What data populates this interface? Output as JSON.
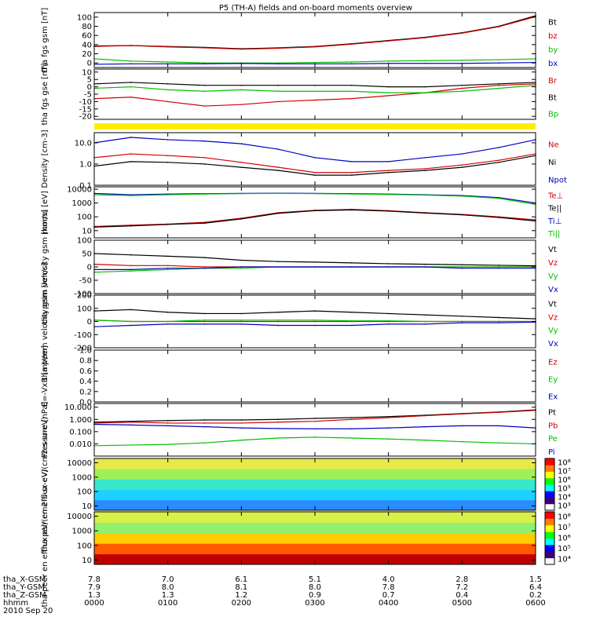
{
  "title": "P5 (TH-A) fields and on-board moments overview",
  "chart_data": [
    {
      "type": "line",
      "ylabel": "tha fgs gsm [nT]",
      "ylim": [
        -10,
        110
      ],
      "yscale": "linear",
      "yticks": [
        0,
        20,
        40,
        60,
        80,
        100
      ],
      "ytick_labels": [
        "0",
        "20",
        "40",
        "60",
        "80",
        "100"
      ],
      "x": [
        0,
        30,
        60,
        90,
        120,
        150,
        180,
        210,
        240,
        270,
        300,
        330,
        360
      ],
      "series": [
        {
          "name": "Bt",
          "color": "#000000",
          "values": [
            37,
            38,
            36,
            34,
            31,
            33,
            36,
            42,
            49,
            56,
            66,
            80,
            103
          ]
        },
        {
          "name": "bz",
          "color": "#d00000",
          "values": [
            36,
            38,
            35,
            33,
            30,
            32,
            35,
            41,
            48,
            55,
            65,
            79,
            101
          ]
        },
        {
          "name": "by",
          "color": "#00c000",
          "values": [
            9,
            4,
            2,
            0,
            0,
            0,
            1,
            2,
            4,
            5,
            6,
            7,
            9
          ]
        },
        {
          "name": "bx",
          "color": "#0000c0",
          "values": [
            -3,
            -2,
            -2,
            -2,
            -1,
            -2,
            -2,
            -2,
            -1,
            -1,
            -1,
            0,
            1
          ]
        }
      ]
    },
    {
      "type": "line",
      "ylabel": "tha fgs gse [nT]",
      "ylim": [
        -22,
        12
      ],
      "yscale": "linear",
      "yticks": [
        -20,
        -15,
        -10,
        -5,
        0,
        5,
        10
      ],
      "ytick_labels": [
        "-20",
        "-15",
        "-10",
        "-5",
        "0",
        "5",
        "10"
      ],
      "x": [
        0,
        30,
        60,
        90,
        120,
        150,
        180,
        210,
        240,
        270,
        300,
        330,
        360
      ],
      "series": [
        {
          "name": "Br",
          "color": "#d00000",
          "values": [
            -8,
            -7,
            -10,
            -13,
            -12,
            -10,
            -9,
            -8,
            -6,
            -4,
            -1,
            1,
            2
          ]
        },
        {
          "name": "Bt",
          "color": "#000000",
          "values": [
            2,
            3,
            2,
            1,
            1,
            1,
            1,
            1,
            0,
            0,
            1,
            2,
            3
          ]
        },
        {
          "name": "Bp",
          "color": "#00c000",
          "values": [
            -1,
            0,
            -2,
            -3,
            -2,
            -3,
            -3,
            -3,
            -4,
            -4,
            -3,
            -1,
            1
          ]
        }
      ]
    },
    {
      "type": "line",
      "ylabel": "Density [cm-3]",
      "ylim": [
        0.1,
        30
      ],
      "yscale": "log",
      "yticks": [
        0.1,
        1,
        10
      ],
      "ytick_labels": [
        "0.1",
        "1.0",
        "10.0"
      ],
      "x": [
        0,
        30,
        60,
        90,
        120,
        150,
        180,
        210,
        240,
        270,
        300,
        330,
        360
      ],
      "series": [
        {
          "name": "Ne",
          "color": "#d00000",
          "values": [
            2,
            3,
            2.5,
            2,
            1.2,
            0.7,
            0.4,
            0.4,
            0.5,
            0.6,
            0.9,
            1.5,
            3
          ]
        },
        {
          "name": "Ni",
          "color": "#000000",
          "values": [
            0.8,
            1.3,
            1.2,
            1,
            0.7,
            0.5,
            0.3,
            0.3,
            0.4,
            0.5,
            0.7,
            1.2,
            2.5
          ]
        },
        {
          "name": "Npot",
          "color": "#0000c0",
          "values": [
            10,
            18,
            14,
            12,
            9,
            5,
            2,
            1.3,
            1.3,
            2,
            3,
            6,
            14
          ]
        }
      ]
    },
    {
      "type": "line",
      "ylabel": "moms [eV]",
      "ylim": [
        3,
        15000
      ],
      "yscale": "log",
      "yticks": [
        10,
        100,
        1000,
        10000
      ],
      "ytick_labels": [
        "10",
        "100",
        "1000",
        "10000"
      ],
      "x": [
        0,
        30,
        60,
        90,
        120,
        150,
        180,
        210,
        240,
        270,
        300,
        330,
        360
      ],
      "series": [
        {
          "name": "Te⊥",
          "color": "#d00000",
          "values": [
            20,
            25,
            30,
            40,
            80,
            200,
            300,
            350,
            280,
            200,
            150,
            100,
            60
          ]
        },
        {
          "name": "Te||",
          "color": "#000000",
          "values": [
            18,
            22,
            28,
            35,
            70,
            180,
            280,
            320,
            260,
            190,
            140,
            90,
            50
          ]
        },
        {
          "name": "Ti⊥",
          "color": "#0000c0",
          "values": [
            5000,
            4000,
            4500,
            4800,
            5000,
            5200,
            5000,
            4800,
            4500,
            4000,
            3500,
            2500,
            1000
          ]
        },
        {
          "name": "Ti||",
          "color": "#00c000",
          "values": [
            4000,
            3500,
            4000,
            4500,
            4800,
            5000,
            4800,
            4500,
            4200,
            3800,
            3200,
            2200,
            800
          ]
        }
      ]
    },
    {
      "type": "line",
      "ylabel": "tha peim velocity gsm [km/s]",
      "ylim": [
        -100,
        100
      ],
      "yscale": "linear",
      "yticks": [
        -100,
        -50,
        0,
        50,
        100
      ],
      "ytick_labels": [
        "-100",
        "-50",
        "0",
        "50",
        "100"
      ],
      "x": [
        0,
        30,
        60,
        90,
        120,
        150,
        180,
        210,
        240,
        270,
        300,
        330,
        360
      ],
      "series": [
        {
          "name": "Vt",
          "color": "#000000",
          "values": [
            50,
            45,
            40,
            35,
            25,
            20,
            18,
            15,
            12,
            10,
            8,
            6,
            4
          ]
        },
        {
          "name": "Vz",
          "color": "#d00000",
          "values": [
            10,
            5,
            5,
            0,
            0,
            0,
            0,
            0,
            0,
            0,
            0,
            0,
            0
          ]
        },
        {
          "name": "Vy",
          "color": "#00c000",
          "values": [
            -20,
            -15,
            -10,
            -5,
            -5,
            0,
            0,
            0,
            0,
            0,
            0,
            0,
            0
          ]
        },
        {
          "name": "Vx",
          "color": "#0000c0",
          "values": [
            -10,
            -10,
            -5,
            -5,
            0,
            0,
            0,
            0,
            0,
            0,
            -5,
            -5,
            -5
          ]
        }
      ]
    },
    {
      "type": "line",
      "ylabel": "tha peem velocity gsm [km/s]",
      "ylim": [
        -200,
        200
      ],
      "yscale": "linear",
      "yticks": [
        -200,
        -100,
        0,
        100,
        200
      ],
      "ytick_labels": [
        "-200",
        "-100",
        "0",
        "100",
        "200"
      ],
      "x": [
        0,
        30,
        60,
        90,
        120,
        150,
        180,
        210,
        240,
        270,
        300,
        330,
        360
      ],
      "series": [
        {
          "name": "Vt",
          "color": "#000000",
          "values": [
            80,
            90,
            70,
            60,
            60,
            70,
            80,
            70,
            60,
            50,
            40,
            30,
            20
          ]
        },
        {
          "name": "Vz",
          "color": "#d00000",
          "values": [
            10,
            0,
            0,
            0,
            0,
            0,
            0,
            0,
            0,
            0,
            0,
            0,
            0
          ]
        },
        {
          "name": "Vy",
          "color": "#00c000",
          "values": [
            10,
            0,
            0,
            10,
            10,
            10,
            10,
            5,
            5,
            0,
            0,
            0,
            0
          ]
        },
        {
          "name": "Vx",
          "color": "#0000c0",
          "values": [
            -40,
            -30,
            -20,
            -20,
            -20,
            -30,
            -30,
            -30,
            -20,
            -20,
            -10,
            -10,
            -5
          ]
        }
      ]
    },
    {
      "type": "line",
      "ylabel": "E=-VxB [mV/m]",
      "ylim": [
        0,
        1
      ],
      "yscale": "linear",
      "yticks": [
        0,
        0.2,
        0.4,
        0.6,
        0.8,
        1
      ],
      "ytick_labels": [
        "0.0",
        "0.2",
        "0.4",
        "0.6",
        "0.8",
        "1.0"
      ],
      "x": [],
      "series": [
        {
          "name": "Ez",
          "color": "#d00000",
          "values": []
        },
        {
          "name": "Ey",
          "color": "#00c000",
          "values": []
        },
        {
          "name": "Ex",
          "color": "#0000c0",
          "values": []
        }
      ]
    },
    {
      "type": "line",
      "ylabel": "Pressure [nPa]",
      "ylim": [
        0.001,
        20
      ],
      "yscale": "log",
      "yticks": [
        0.01,
        0.1,
        1,
        10
      ],
      "ytick_labels": [
        "0.010",
        "0.100",
        "1.000",
        "10.000"
      ],
      "x": [
        0,
        30,
        60,
        90,
        120,
        150,
        180,
        210,
        240,
        270,
        300,
        330,
        360
      ],
      "series": [
        {
          "name": "Pt",
          "color": "#000000",
          "values": [
            0.6,
            0.7,
            0.8,
            0.9,
            0.9,
            1.0,
            1.2,
            1.4,
            1.7,
            2.2,
            3,
            4,
            6
          ]
        },
        {
          "name": "Pb",
          "color": "#d00000",
          "values": [
            0.5,
            0.6,
            0.5,
            0.5,
            0.5,
            0.6,
            0.7,
            1.0,
            1.4,
            2,
            2.8,
            3.8,
            5.5
          ]
        },
        {
          "name": "Pe",
          "color": "#00c000",
          "values": [
            0.007,
            0.008,
            0.009,
            0.012,
            0.02,
            0.03,
            0.035,
            0.03,
            0.025,
            0.02,
            0.015,
            0.012,
            0.01
          ]
        },
        {
          "name": "Pi",
          "color": "#0000c0",
          "values": [
            0.4,
            0.35,
            0.3,
            0.25,
            0.2,
            0.18,
            0.17,
            0.17,
            0.2,
            0.25,
            0.3,
            0.3,
            0.2
          ]
        }
      ]
    },
    {
      "type": "heatmap",
      "ylabel": "tha peir en efflux eV/(cm2-s-sr-eV)",
      "ylim": [
        5,
        20000
      ],
      "yscale": "log",
      "yticks": [
        10,
        100,
        1000,
        10000
      ],
      "ytick_labels": [
        "10",
        "100",
        "1000",
        "10000"
      ],
      "color_ticks": [
        "10³",
        "10⁴",
        "10⁵",
        "10⁶",
        "10⁷",
        "10⁸"
      ]
    },
    {
      "type": "heatmap",
      "ylabel": "tha peer en efflux eV/(cm2-s-sr-eV)",
      "ylim": [
        5,
        20000
      ],
      "yscale": "log",
      "yticks": [
        10,
        100,
        1000,
        10000
      ],
      "ytick_labels": [
        "10",
        "100",
        "1000",
        "10000"
      ],
      "color_ticks": [
        "10⁴",
        "10⁵",
        "10⁶",
        "10⁷",
        "10⁸"
      ]
    }
  ],
  "x_axis": {
    "rows": [
      {
        "label": "tha_X-GSM",
        "values": [
          "7.8",
          "7.0",
          "6.1",
          "5.1",
          "4.0",
          "2.8",
          "1.5"
        ]
      },
      {
        "label": "tha_Y-GSM",
        "values": [
          "7.9",
          "8.0",
          "8.1",
          "8.0",
          "7.8",
          "7.2",
          "6.4"
        ]
      },
      {
        "label": "tha_Z-GSM",
        "values": [
          "1.3",
          "1.3",
          "1.2",
          "0.9",
          "0.7",
          "0.4",
          "0.2"
        ]
      },
      {
        "label": "hhmm",
        "values": [
          "0000",
          "0100",
          "0200",
          "0300",
          "0400",
          "0500",
          "0600"
        ]
      }
    ],
    "date": "2010 Sep 20"
  }
}
